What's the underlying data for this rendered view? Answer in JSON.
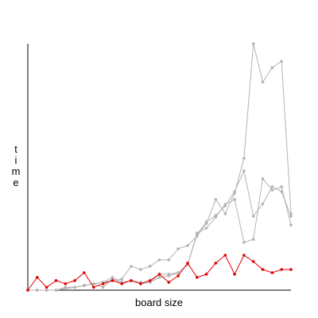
{
  "chart_data": {
    "type": "line",
    "title": "",
    "xlabel": "board size",
    "ylabel": "time",
    "x": [
      1,
      2,
      3,
      4,
      5,
      6,
      7,
      8,
      9,
      10,
      11,
      12,
      13,
      14,
      15,
      16,
      17,
      18,
      19,
      20,
      21,
      22,
      23,
      24,
      25,
      26,
      27,
      28,
      29
    ],
    "xlim": [
      1,
      29
    ],
    "ylim": [
      0,
      100
    ],
    "grid": false,
    "legend": "none",
    "series": [
      {
        "color": "#b3b3b3",
        "values": [
          0.0,
          0.0,
          0.0,
          0.0,
          0.6,
          1.2,
          1.9,
          2.6,
          3.2,
          3.9,
          4.5,
          9.7,
          8.4,
          9.7,
          12.3,
          12.3,
          16.8,
          18.1,
          21.9,
          27.1,
          36.8,
          31.0,
          39.4,
          53.5,
          100.0,
          84.5,
          90.3,
          92.9,
          31.0
        ]
      },
      {
        "color": "#b3b3b3",
        "values": [
          0.0,
          0.0,
          0.0,
          0.0,
          0.6,
          1.2,
          1.9,
          2.6,
          1.2,
          4.5,
          3.2,
          3.9,
          2.6,
          3.2,
          6.5,
          6.5,
          7.1,
          10.3,
          23.2,
          25.2,
          29.7,
          34.8,
          36.8,
          19.4,
          20.6,
          45.2,
          40.6,
          41.9,
          26.5
        ]
      },
      {
        "color": "#b3b3b3",
        "values": [
          0.0,
          0.0,
          0.0,
          0.0,
          1.2,
          1.2,
          1.9,
          2.6,
          3.2,
          5.2,
          3.2,
          3.9,
          3.2,
          3.2,
          5.2,
          5.8,
          7.1,
          10.3,
          22.6,
          27.7,
          30.3,
          34.2,
          40.0,
          48.4,
          30.0,
          35.0,
          42.0,
          40.0,
          30.0
        ]
      },
      {
        "color": "#e00000",
        "values": [
          0.0,
          5.2,
          1.2,
          3.9,
          2.6,
          3.9,
          7.1,
          1.2,
          2.6,
          3.9,
          2.6,
          3.9,
          2.6,
          3.9,
          6.5,
          3.2,
          5.8,
          11.0,
          5.2,
          6.5,
          11.0,
          14.2,
          6.5,
          14.2,
          11.6,
          8.4,
          7.1,
          8.4,
          8.4
        ]
      }
    ]
  }
}
